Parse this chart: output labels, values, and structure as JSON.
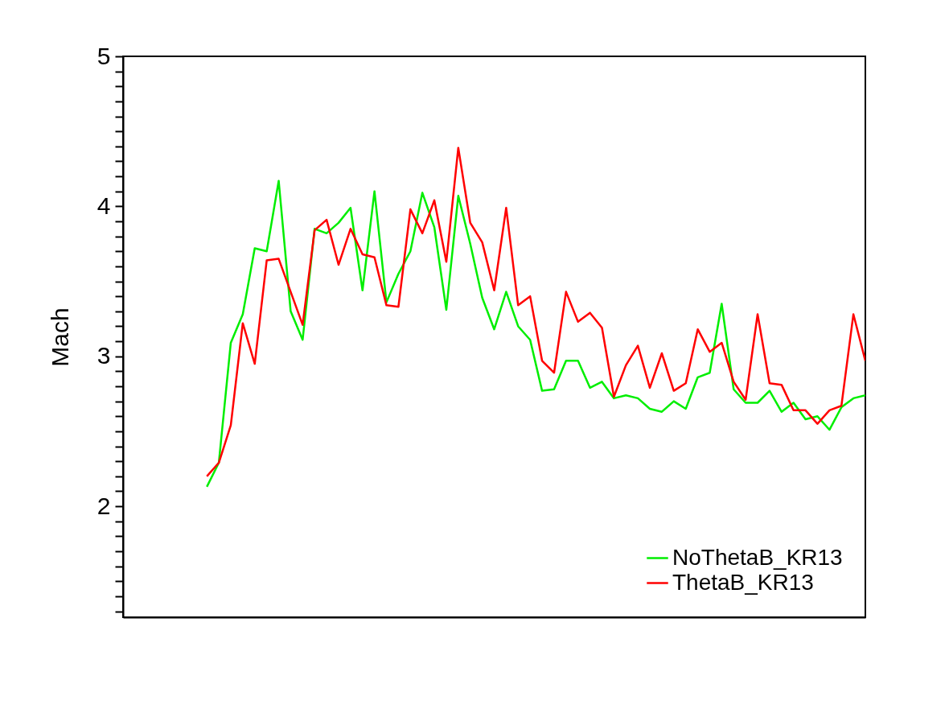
{
  "chart_data": {
    "type": "line",
    "ylabel": "Mach",
    "categories": [
      null,
      null,
      null,
      null,
      null,
      null,
      null,
      null,
      null,
      null,
      null,
      null,
      null,
      null,
      null,
      null,
      null,
      null,
      null,
      null,
      null,
      null,
      null,
      null,
      null,
      null,
      null,
      null,
      null,
      null,
      null,
      null,
      null,
      null,
      null,
      null,
      null,
      null,
      null,
      null,
      null,
      null,
      null,
      null,
      null,
      null,
      null,
      null,
      null,
      null,
      null,
      null,
      null,
      null,
      null,
      null,
      null,
      null,
      null,
      null,
      null,
      null,
      null
    ],
    "series": [
      {
        "name": "NoThetaB_KR13",
        "color": "#00ee00",
        "values": [
          null,
          null,
          null,
          null,
          null,
          null,
          null,
          2.13,
          2.29,
          3.09,
          3.28,
          3.72,
          3.7,
          4.17,
          3.3,
          3.11,
          3.85,
          3.82,
          3.89,
          3.99,
          3.44,
          4.1,
          3.36,
          3.55,
          3.7,
          4.09,
          3.86,
          3.31,
          4.07,
          3.75,
          3.39,
          3.18,
          3.43,
          3.2,
          3.11,
          2.77,
          2.78,
          2.97,
          2.97,
          2.79,
          2.83,
          2.72,
          2.74,
          2.72,
          2.65,
          2.63,
          2.7,
          2.65,
          2.86,
          2.89,
          3.35,
          2.78,
          2.69,
          2.69,
          2.77,
          2.63,
          2.69,
          2.58,
          2.6,
          2.51,
          2.66,
          2.72,
          2.74
        ]
      },
      {
        "name": "ThetaB_KR13",
        "color": "#ff0000",
        "values": [
          null,
          null,
          null,
          null,
          null,
          null,
          null,
          2.2,
          2.29,
          2.54,
          3.22,
          2.95,
          3.64,
          3.65,
          3.43,
          3.21,
          3.84,
          3.91,
          3.61,
          3.85,
          3.68,
          3.66,
          3.34,
          3.33,
          3.98,
          3.82,
          4.04,
          3.63,
          4.39,
          3.89,
          3.76,
          3.44,
          3.99,
          3.34,
          3.4,
          2.97,
          2.89,
          3.43,
          3.23,
          3.29,
          3.19,
          2.73,
          2.94,
          3.07,
          2.79,
          3.02,
          2.77,
          2.82,
          3.18,
          3.03,
          3.09,
          2.83,
          2.71,
          3.28,
          2.82,
          2.81,
          2.64,
          2.64,
          2.55,
          2.64,
          2.67,
          3.28,
          2.97
        ]
      }
    ],
    "ylim": [
      1.26,
      5
    ],
    "yticks": [
      {
        "value": 1.3,
        "label": null
      },
      {
        "value": 1.4,
        "label": null
      },
      {
        "value": 1.5,
        "label": null
      },
      {
        "value": 1.6,
        "label": null
      },
      {
        "value": 1.7,
        "label": null
      },
      {
        "value": 1.8,
        "label": null
      },
      {
        "value": 1.9,
        "label": null
      },
      2,
      {
        "value": 2.1,
        "label": null
      },
      {
        "value": 2.2,
        "label": null
      },
      {
        "value": 2.3,
        "label": null
      },
      {
        "value": 2.4,
        "label": null
      },
      {
        "value": 2.5,
        "label": null
      },
      {
        "value": 2.6,
        "label": null
      },
      {
        "value": 2.7,
        "label": null
      },
      {
        "value": 2.8,
        "label": null
      },
      {
        "value": 2.9,
        "label": null
      },
      3,
      {
        "value": 3.1,
        "label": null
      },
      {
        "value": 3.2,
        "label": null
      },
      {
        "value": 3.3,
        "label": null
      },
      {
        "value": 3.4,
        "label": null
      },
      {
        "value": 3.5,
        "label": null
      },
      {
        "value": 3.6,
        "label": null
      },
      {
        "value": 3.7,
        "label": null
      },
      {
        "value": 3.8,
        "label": null
      },
      {
        "value": 3.9,
        "label": null
      },
      4,
      {
        "value": 4.1,
        "label": null
      },
      {
        "value": 4.2,
        "label": null
      },
      {
        "value": 4.3,
        "label": null
      },
      {
        "value": 4.4,
        "label": null
      },
      {
        "value": 4.5,
        "label": null
      },
      {
        "value": 4.6,
        "label": null
      },
      {
        "value": 4.7,
        "label": null
      },
      {
        "value": 4.8,
        "label": null
      },
      {
        "value": 4.9,
        "label": null
      },
      5
    ],
    "grid": false,
    "legend": "bottom right",
    "marker": "none",
    "line_style": "solid"
  }
}
